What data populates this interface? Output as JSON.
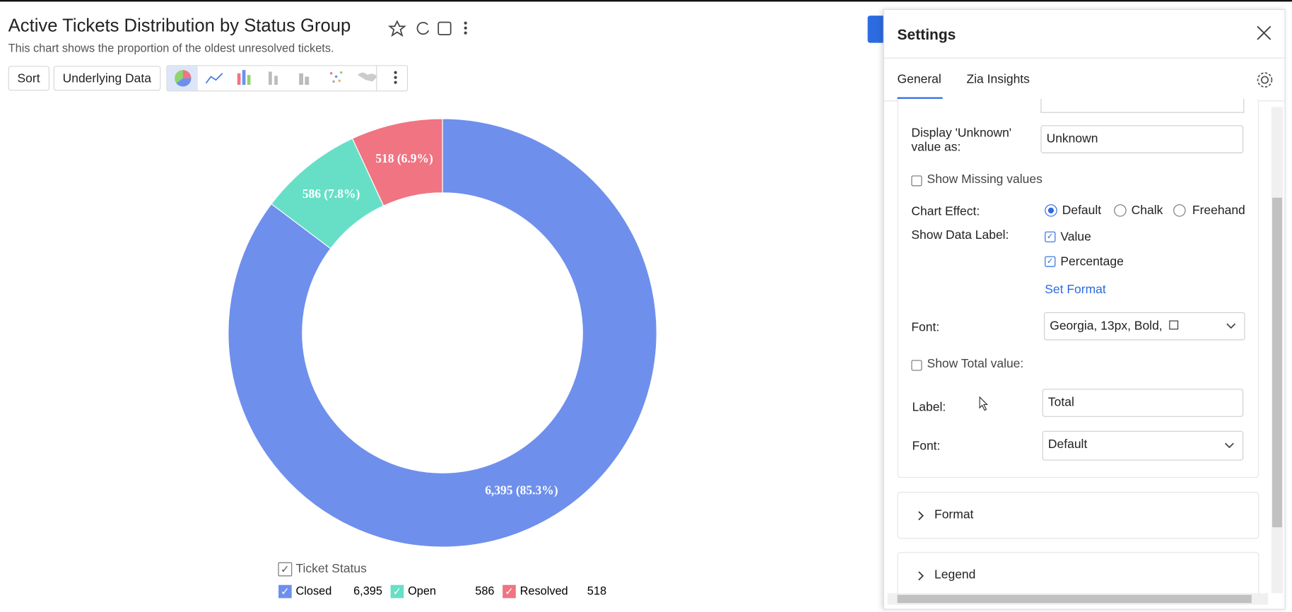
{
  "header": {
    "title": "Active Tickets Distribution by Status Group",
    "subtitle": "This chart shows the proportion of the oldest unresolved tickets."
  },
  "toolbar": {
    "buttons": [
      "Sort",
      "Underlying Data"
    ]
  },
  "chart_data": {
    "type": "donut",
    "categories": [
      "Closed",
      "Open",
      "Resolved"
    ],
    "values": [
      6395,
      586,
      518
    ],
    "value_labels": [
      "6,395 (85.3%)",
      "586 (7.8%)",
      "518 (6.9%)"
    ],
    "colors": [
      "#6f8fec",
      "#67dfc7",
      "#f07482"
    ],
    "legend": {
      "title": "Ticket Status",
      "value_labels": [
        "6,395",
        "586",
        "518"
      ]
    }
  },
  "settings": {
    "title": "Settings",
    "tabs": [
      "General",
      "Zia Insights"
    ],
    "unknown_label": "Display 'Unknown' value as:",
    "unknown_value": "Unknown",
    "show_missing": "Show Missing values",
    "chart_effect_label": "Chart Effect:",
    "chart_effects": [
      "Default",
      "Chalk",
      "Freehand"
    ],
    "data_label_label": "Show Data Label:",
    "data_label_options": [
      "Value",
      "Percentage"
    ],
    "set_format": "Set Format",
    "font_label": "Font:",
    "font_value": "Georgia, 13px, Bold,",
    "show_total": "Show Total value:",
    "total_label_label": "Label:",
    "total_label_value": "Total",
    "total_font_label": "Font:",
    "total_font_value": "Default",
    "sections": [
      "Format",
      "Legend"
    ]
  }
}
